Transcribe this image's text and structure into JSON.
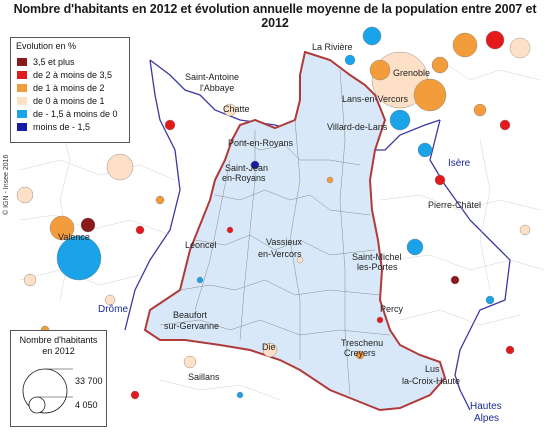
{
  "title": "Nombre d'habitants en 2012 et évolution annuelle moyenne de la population entre 2007 et 2012",
  "credit": "© IGN - Insee 2016",
  "legend_evolution": {
    "title": "Evolution en %",
    "items": [
      {
        "label": "3,5 et plus",
        "color": "#8b1a1a"
      },
      {
        "label": "de 2 à moins de 3,5",
        "color": "#e31a1c"
      },
      {
        "label": "de 1 à moins de 2",
        "color": "#f39c3c"
      },
      {
        "label": "de 0 à moins de 1",
        "color": "#fde0c5"
      },
      {
        "label": "de - 1,5 à moins de 0",
        "color": "#1aa3e8"
      },
      {
        "label": "moins de - 1,5",
        "color": "#1a1aa8"
      }
    ]
  },
  "legend_population": {
    "title_line1": "Nombre d'habitants",
    "title_line2": "en 2012",
    "values": [
      "33 700",
      "4 050"
    ]
  },
  "places": [
    "La Rivière",
    "Grenoble",
    "Saint-Antoine",
    "l'Abbaye",
    "Lans-en-Vercors",
    "Chatte",
    "Villard-de-Lans",
    "Pont-en-Royans",
    "Saint-Jean",
    "en-Royans",
    "Isère",
    "Pierre-Châtel",
    "Valence",
    "Léoncel",
    "Vassieux",
    "en-Vercors",
    "Saint-Michel",
    "les-Portes",
    "Drôme",
    "Percy",
    "Beaufort",
    "sur-Gervanne",
    "Die",
    "Treschenu",
    "Creyers",
    "Saillans",
    "Lus",
    "la-Croix-Haute",
    "Hautes",
    "Alpes"
  ]
}
